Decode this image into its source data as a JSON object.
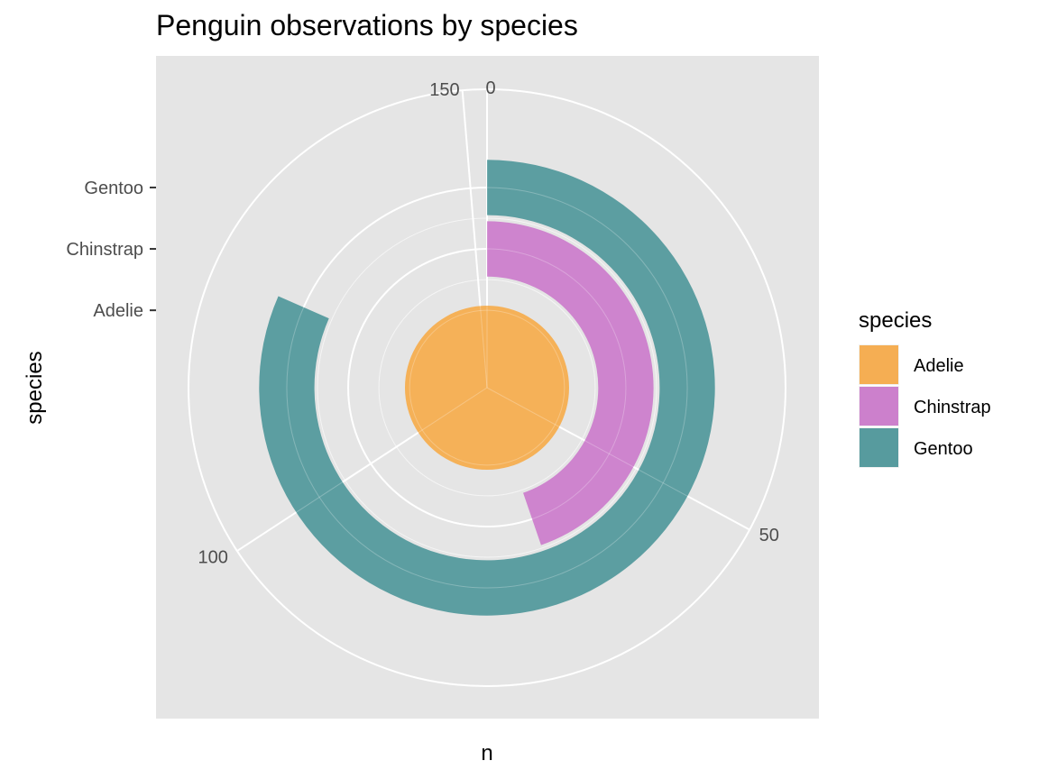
{
  "chart_data": {
    "type": "bar",
    "coord": "polar",
    "title": "Penguin observations by species",
    "xlabel": "n",
    "ylabel": "species",
    "categories": [
      "Adelie",
      "Chinstrap",
      "Gentoo"
    ],
    "values": [
      152,
      68,
      124
    ],
    "theta_max": 152,
    "theta_ticks": [
      0,
      50,
      100,
      150
    ],
    "theta_tick_labels": [
      "0",
      "50",
      "100",
      "150"
    ],
    "colors": {
      "Adelie": "#f5ae53",
      "Chinstrap": "#cc80cc",
      "Gentoo": "#579b9e"
    },
    "panel_background": "#e5e5e5",
    "grid": true,
    "legend": {
      "title": "species",
      "position": "right",
      "entries": [
        "Adelie",
        "Chinstrap",
        "Gentoo"
      ]
    }
  }
}
